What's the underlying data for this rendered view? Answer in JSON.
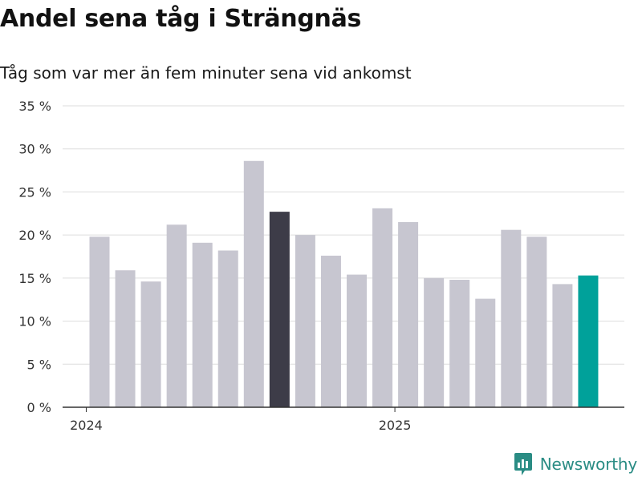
{
  "header": {
    "title": "Andel sena tåg i Strängnäs",
    "subtitle": "Tåg som var mer än fem minuter sena vid ankomst"
  },
  "brand": {
    "name": "Newsworthy",
    "icon": "newsworthy-logo-icon"
  },
  "colors": {
    "default_bar": "#c7c6d0",
    "highlight_bar": "#3d3c48",
    "latest_bar": "#00a19a",
    "gridline": "#dddddd",
    "axis": "#333333",
    "brand": "#2a8c84"
  },
  "chart_data": {
    "type": "bar",
    "title": "Andel sena tåg i Strängnäs",
    "subtitle": "Tåg som var mer än fem minuter sena vid ankomst",
    "xlabel": "",
    "ylabel": "",
    "ylim": [
      0,
      35
    ],
    "y_ticks": [
      {
        "value": 0,
        "label": "0 %"
      },
      {
        "value": 5,
        "label": "5 %"
      },
      {
        "value": 10,
        "label": "10 %"
      },
      {
        "value": 15,
        "label": "15 %"
      },
      {
        "value": 20,
        "label": "20 %"
      },
      {
        "value": 25,
        "label": "25 %"
      },
      {
        "value": 30,
        "label": "30 %"
      },
      {
        "value": 35,
        "label": "35 %"
      }
    ],
    "x_ticks": [
      {
        "index": -1,
        "label": "2024"
      },
      {
        "index": 11,
        "label": "2025"
      }
    ],
    "grid": true,
    "categories": [
      "2024-02",
      "2024-03",
      "2024-04",
      "2024-05",
      "2024-06",
      "2024-07",
      "2024-08",
      "2024-09",
      "2024-10",
      "2024-11",
      "2024-12",
      "2025-01",
      "2025-02",
      "2025-03",
      "2025-04",
      "2025-05",
      "2025-06",
      "2025-07",
      "2025-08",
      "2025-09"
    ],
    "values": [
      19.8,
      15.9,
      14.6,
      21.2,
      19.1,
      18.2,
      28.6,
      22.7,
      20.0,
      17.6,
      15.4,
      23.1,
      21.5,
      15.0,
      14.8,
      12.6,
      20.6,
      19.8,
      14.3,
      15.3
    ],
    "highlight_index": 7,
    "latest_index": 19
  }
}
